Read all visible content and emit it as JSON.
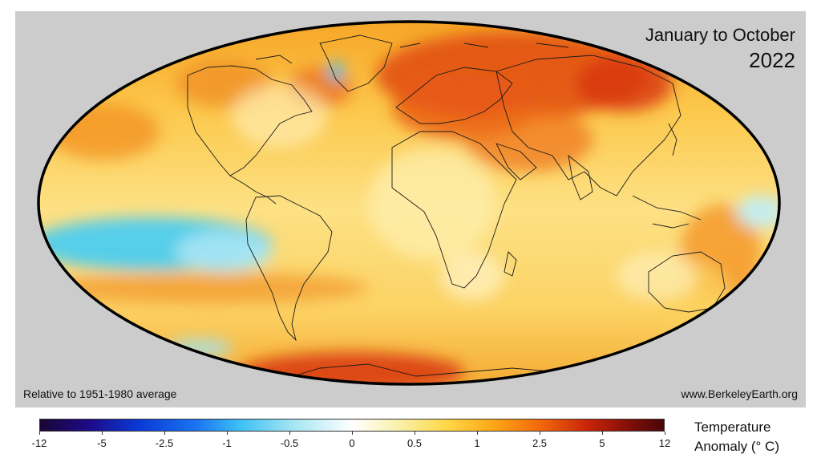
{
  "map": {
    "title_line1": "January to October",
    "title_line2": "2022",
    "baseline_note": "Relative to 1951-1980 average",
    "source": "www.BerkeleyEarth.org",
    "projection": "Mollweide"
  },
  "colorbar": {
    "title_line1": "Temperature",
    "title_line2": "Anomaly (° C)",
    "ticks": [
      "-12",
      "-5",
      "-2.5",
      "-1",
      "-0.5",
      "0",
      "0.5",
      "1",
      "2.5",
      "5",
      "12"
    ]
  },
  "colors": {
    "panel_background": "#cccccc",
    "coldest": "#1a0533",
    "neutral": "#ffffff",
    "warmest": "#4a0608"
  }
}
